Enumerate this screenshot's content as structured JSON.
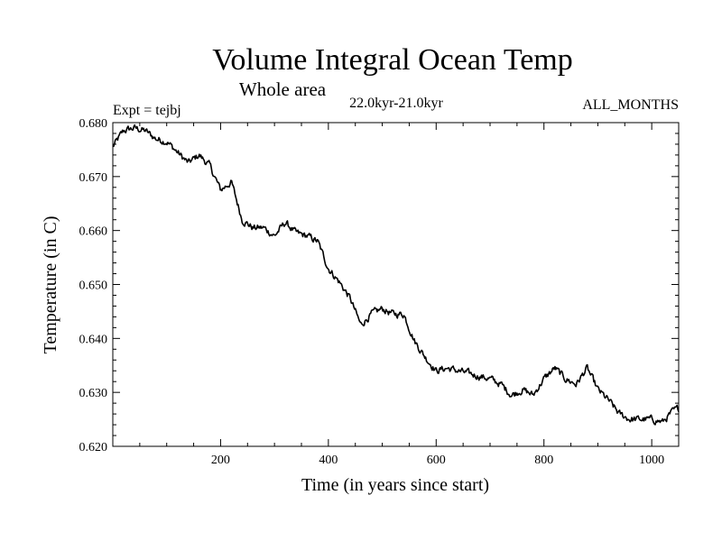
{
  "chart_data": {
    "type": "line",
    "title": "Volume Integral Ocean Temp",
    "subtitle": "Whole area",
    "period": "22.0kyr-21.0kyr",
    "left_note": "Expt = tejbj",
    "right_note": "ALL_MONTHS",
    "xlabel": "Time (in years since start)",
    "ylabel": "Temperature (in C)",
    "xlim": [
      0,
      1050
    ],
    "ylim": [
      0.62,
      0.68
    ],
    "x_ticks": [
      200,
      400,
      600,
      800,
      1000
    ],
    "x_tick_labels": [
      "200",
      "400",
      "600",
      "800",
      "1000"
    ],
    "y_ticks": [
      0.62,
      0.63,
      0.64,
      0.65,
      0.66,
      0.67,
      0.68
    ],
    "y_tick_labels": [
      "0.620",
      "0.630",
      "0.640",
      "0.650",
      "0.660",
      "0.670",
      "0.680"
    ],
    "series": [
      {
        "name": "tejbj",
        "color": "#000000",
        "x": [
          0,
          20,
          40,
          60,
          80,
          100,
          120,
          140,
          160,
          180,
          200,
          220,
          240,
          260,
          280,
          300,
          320,
          340,
          360,
          380,
          400,
          420,
          440,
          460,
          480,
          500,
          520,
          540,
          560,
          580,
          600,
          620,
          640,
          660,
          680,
          700,
          720,
          740,
          760,
          780,
          800,
          820,
          840,
          860,
          880,
          900,
          920,
          940,
          960,
          980,
          1000,
          1020,
          1040,
          1050
        ],
        "values": [
          0.6755,
          0.6785,
          0.679,
          0.6785,
          0.677,
          0.6765,
          0.6745,
          0.6725,
          0.674,
          0.672,
          0.6675,
          0.669,
          0.662,
          0.6605,
          0.6605,
          0.659,
          0.6615,
          0.6595,
          0.659,
          0.658,
          0.653,
          0.6505,
          0.6475,
          0.6425,
          0.6445,
          0.6455,
          0.6445,
          0.6445,
          0.6395,
          0.6365,
          0.634,
          0.6345,
          0.634,
          0.6335,
          0.633,
          0.6325,
          0.6315,
          0.6295,
          0.6305,
          0.6295,
          0.6325,
          0.6345,
          0.6325,
          0.6315,
          0.6345,
          0.6305,
          0.6285,
          0.626,
          0.625,
          0.625,
          0.625,
          0.6245,
          0.6265,
          0.627
        ]
      }
    ]
  }
}
